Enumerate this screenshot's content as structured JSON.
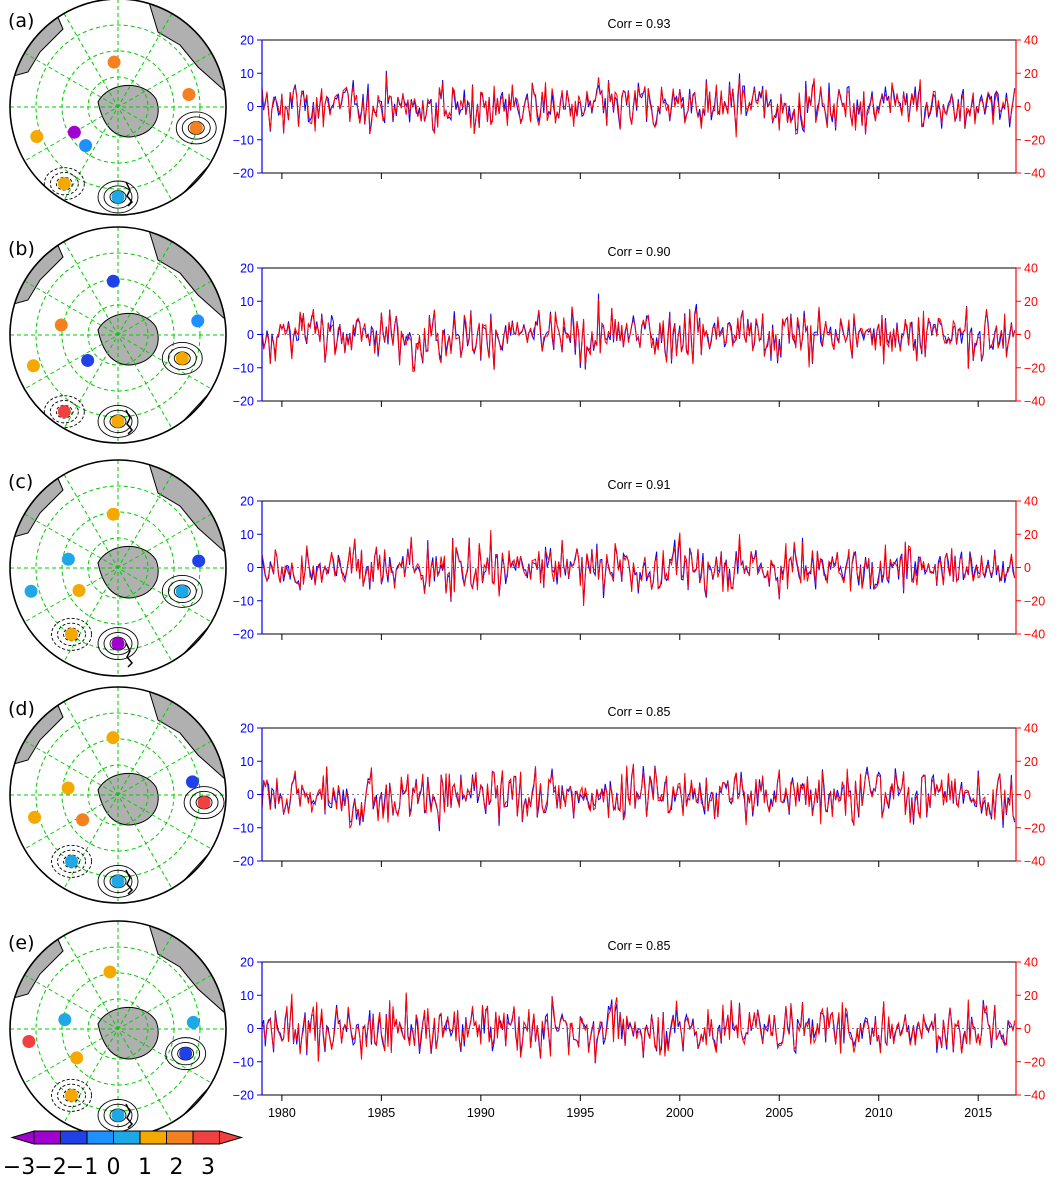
{
  "colors": {
    "left_axis": "#0000ff",
    "right_axis": "#ff0000",
    "land": "#b0b0b0",
    "grid": "#00cc00"
  },
  "colorbar": {
    "labels": [
      "−3",
      "−2",
      "−1",
      "0",
      "1",
      "2",
      "3"
    ],
    "colors": [
      "#a000d0",
      "#2040e8",
      "#1e90ff",
      "#1ea8e8",
      "#f5a800",
      "#f58020",
      "#f04040"
    ]
  },
  "chart_data": [
    {
      "label": "(a)",
      "type": "line",
      "title": "Corr = 0.93",
      "left_ylim": [
        -20,
        20
      ],
      "right_ylim": [
        -40,
        40
      ],
      "left_ticks": [
        "20",
        "10",
        "0",
        "−10",
        "−20"
      ],
      "right_ticks": [
        "40",
        "20",
        "0",
        "−20",
        "−40"
      ],
      "x_range": [
        1979,
        2016.9
      ],
      "x_ticks": [
        1980,
        1985,
        1990,
        1995,
        2000,
        2005,
        2010,
        2015
      ],
      "series": [
        {
          "color": "#0000ff",
          "axis": "left"
        },
        {
          "color": "#ff0000",
          "axis": "right"
        }
      ],
      "map_dots": [
        {
          "color": "#1ea8e8",
          "lon": 180,
          "lat": -40
        },
        {
          "color": "#f5a800",
          "lon": 215,
          "lat": -38
        },
        {
          "color": "#f58020",
          "lon": 105,
          "lat": -45
        },
        {
          "color": "#f58020",
          "lon": 80,
          "lat": -50
        },
        {
          "color": "#1e90ff",
          "lon": 220,
          "lat": -62
        },
        {
          "color": "#a000d0",
          "lon": 240,
          "lat": -62
        },
        {
          "color": "#f5a800",
          "lon": 250,
          "lat": -42
        },
        {
          "color": "#f58020",
          "lon": 355,
          "lat": -65
        }
      ]
    },
    {
      "label": "(b)",
      "type": "line",
      "title": "Corr = 0.90",
      "left_ylim": [
        -20,
        20
      ],
      "right_ylim": [
        -40,
        40
      ],
      "left_ticks": [
        "20",
        "10",
        "0",
        "−10",
        "−20"
      ],
      "right_ticks": [
        "40",
        "20",
        "0",
        "−20",
        "−40"
      ],
      "x_range": [
        1979,
        2016.9
      ],
      "x_ticks": [
        1980,
        1985,
        1990,
        1995,
        2000,
        2005,
        2010,
        2015
      ],
      "series": [
        {
          "color": "#0000ff",
          "axis": "left"
        },
        {
          "color": "#ff0000",
          "axis": "right"
        }
      ],
      "map_dots": [
        {
          "color": "#f5a800",
          "lon": 180,
          "lat": -42
        },
        {
          "color": "#f04040",
          "lon": 215,
          "lat": -38
        },
        {
          "color": "#f5a800",
          "lon": 110,
          "lat": -52
        },
        {
          "color": "#1e90ff",
          "lon": 80,
          "lat": -45
        },
        {
          "color": "#2040e8",
          "lon": 230,
          "lat": -68
        },
        {
          "color": "#f5a800",
          "lon": 250,
          "lat": -40
        },
        {
          "color": "#f58020",
          "lon": 280,
          "lat": -58
        },
        {
          "color": "#2040e8",
          "lon": 355,
          "lat": -60
        }
      ]
    },
    {
      "label": "(c)",
      "type": "line",
      "title": "Corr = 0.91",
      "left_ylim": [
        -20,
        20
      ],
      "right_ylim": [
        -40,
        40
      ],
      "left_ticks": [
        "20",
        "10",
        "0",
        "−10",
        "−20"
      ],
      "right_ticks": [
        "40",
        "20",
        "0",
        "−20",
        "−40"
      ],
      "x_range": [
        1979,
        2016.9
      ],
      "x_ticks": [
        1980,
        1985,
        1990,
        1995,
        2000,
        2005,
        2010,
        2015
      ],
      "series": [
        {
          "color": "#0000ff",
          "axis": "left"
        },
        {
          "color": "#ff0000",
          "axis": "right"
        }
      ],
      "map_dots": [
        {
          "color": "#a000d0",
          "lon": 180,
          "lat": -48
        },
        {
          "color": "#f5a800",
          "lon": 215,
          "lat": -45
        },
        {
          "color": "#1ea8e8",
          "lon": 110,
          "lat": -52
        },
        {
          "color": "#2040e8",
          "lon": 85,
          "lat": -45
        },
        {
          "color": "#f5a800",
          "lon": 240,
          "lat": -65
        },
        {
          "color": "#1ea8e8",
          "lon": 255,
          "lat": -40
        },
        {
          "color": "#1ea8e8",
          "lon": 280,
          "lat": -62
        },
        {
          "color": "#f5a800",
          "lon": 355,
          "lat": -60
        }
      ]
    },
    {
      "label": "(d)",
      "type": "line",
      "title": "Corr = 0.85",
      "left_ylim": [
        -20,
        20
      ],
      "right_ylim": [
        -40,
        40
      ],
      "left_ticks": [
        "20",
        "10",
        "0",
        "−10",
        "−20"
      ],
      "right_ticks": [
        "40",
        "20",
        "0",
        "−20",
        "−40"
      ],
      "x_range": [
        1979,
        2016.9
      ],
      "x_ticks": [
        1980,
        1985,
        1990,
        1995,
        2000,
        2005,
        2010,
        2015
      ],
      "series": [
        {
          "color": "#0000ff",
          "axis": "left"
        },
        {
          "color": "#ff0000",
          "axis": "right"
        }
      ],
      "map_dots": [
        {
          "color": "#1ea8e8",
          "lon": 180,
          "lat": -42
        },
        {
          "color": "#1ea8e8",
          "lon": 215,
          "lat": -45
        },
        {
          "color": "#f04040",
          "lon": 95,
          "lat": -42
        },
        {
          "color": "#2040e8",
          "lon": 80,
          "lat": -48
        },
        {
          "color": "#f58020",
          "lon": 235,
          "lat": -66
        },
        {
          "color": "#f5a800",
          "lon": 255,
          "lat": -42
        },
        {
          "color": "#f5a800",
          "lon": 278,
          "lat": -62
        },
        {
          "color": "#f5a800",
          "lon": 355,
          "lat": -58
        }
      ]
    },
    {
      "label": "(e)",
      "type": "line",
      "title": "Corr = 0.85",
      "left_ylim": [
        -20,
        20
      ],
      "right_ylim": [
        -40,
        40
      ],
      "left_ticks": [
        "20",
        "10",
        "0",
        "−10",
        "−20"
      ],
      "right_ticks": [
        "40",
        "20",
        "0",
        "−20",
        "−40"
      ],
      "x_range": [
        1979,
        2016.9
      ],
      "x_ticks": [
        1980,
        1985,
        1990,
        1995,
        2000,
        2005,
        2010,
        2015
      ],
      "x_tick_labels": [
        "1980",
        "1985",
        "1990",
        "1995",
        "2000",
        "2005",
        "2010",
        "2015"
      ],
      "series": [
        {
          "color": "#0000ff",
          "axis": "left"
        },
        {
          "color": "#ff0000",
          "axis": "right"
        }
      ],
      "map_dots": [
        {
          "color": "#1ea8e8",
          "lon": 180,
          "lat": -42
        },
        {
          "color": "#f5a800",
          "lon": 215,
          "lat": -45
        },
        {
          "color": "#2040e8",
          "lon": 110,
          "lat": -50
        },
        {
          "color": "#1ea8e8",
          "lon": 85,
          "lat": -48
        },
        {
          "color": "#f5a800",
          "lon": 235,
          "lat": -62
        },
        {
          "color": "#f04040",
          "lon": 262,
          "lat": -40
        },
        {
          "color": "#1ea8e8",
          "lon": 280,
          "lat": -60
        },
        {
          "color": "#f5a800",
          "lon": 352,
          "lat": -58
        }
      ]
    }
  ]
}
